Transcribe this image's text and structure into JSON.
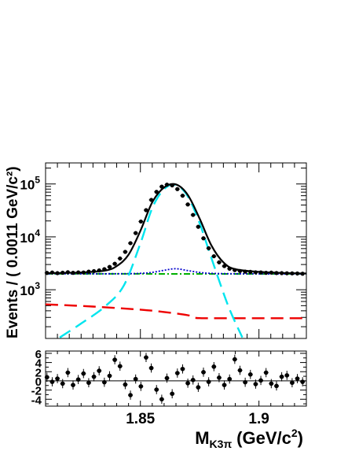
{
  "chart_data": [
    {
      "type": "line",
      "panel": "main-fit",
      "ylabel": "Events / ( 0.0011 GeV/c²)",
      "yscale": "log",
      "xlim": [
        1.81,
        1.92
      ],
      "ylim": [
        120,
        250000
      ],
      "y_tick_labels": [
        {
          "base": "10",
          "exp": "3",
          "value": 1000
        },
        {
          "base": "10",
          "exp": "4",
          "value": 10000
        },
        {
          "base": "10",
          "exp": "5",
          "value": 100000
        }
      ],
      "colors": {
        "data": "#000000",
        "total_fit": "#000000",
        "signal": "#00e5ee",
        "background_peaking": "#0000cc",
        "background_flat": "#00b000",
        "background_other": "#ee0000"
      },
      "series": [
        {
          "key": "data",
          "style": "points",
          "x": [
            1.8106,
            1.8128,
            1.815,
            1.8172,
            1.8194,
            1.8216,
            1.8238,
            1.826,
            1.8282,
            1.8304,
            1.8326,
            1.8348,
            1.837,
            1.8392,
            1.8414,
            1.8436,
            1.8458,
            1.848,
            1.8502,
            1.8524,
            1.8546,
            1.8568,
            1.859,
            1.8612,
            1.8634,
            1.8656,
            1.8678,
            1.87,
            1.8722,
            1.8744,
            1.8766,
            1.8788,
            1.881,
            1.8832,
            1.8854,
            1.8876,
            1.8898,
            1.892,
            1.8942,
            1.8964,
            1.8986,
            1.9008,
            1.903,
            1.9052,
            1.9074,
            1.9096,
            1.9118,
            1.914,
            1.9162,
            1.9184
          ],
          "y": [
            2080,
            2120,
            2060,
            2100,
            2150,
            2090,
            2130,
            2120,
            2200,
            2250,
            2320,
            2450,
            2700,
            3100,
            3900,
            5200,
            7600,
            11800,
            19500,
            32000,
            50000,
            71000,
            89000,
            97000,
            94000,
            80000,
            60000,
            41000,
            26000,
            15500,
            9400,
            6100,
            4300,
            3300,
            2800,
            2500,
            2350,
            2260,
            2200,
            2180,
            2140,
            2130,
            2090,
            2110,
            2070,
            2060,
            2050,
            2040,
            2030,
            2010
          ]
        },
        {
          "key": "total_fit",
          "style": "solid",
          "x": [
            1.81,
            1.825,
            1.835,
            1.84,
            1.845,
            1.85,
            1.855,
            1.86,
            1.865,
            1.87,
            1.875,
            1.88,
            1.885,
            1.89,
            1.9,
            1.91,
            1.92
          ],
          "y": [
            2060,
            2120,
            2300,
            2800,
            4600,
            13000,
            45000,
            86000,
            98000,
            62000,
            22000,
            6800,
            3300,
            2450,
            2180,
            2080,
            2030
          ]
        },
        {
          "key": "signal",
          "style": "dashed",
          "x": [
            1.816,
            1.825,
            1.835,
            1.843,
            1.85,
            1.855,
            1.86,
            1.865,
            1.87,
            1.875,
            1.88,
            1.887,
            1.893
          ],
          "y": [
            125,
            230,
            480,
            1200,
            7500,
            35000,
            80000,
            96000,
            58000,
            18000,
            3900,
            500,
            125
          ]
        },
        {
          "key": "background_peaking",
          "style": "dotted",
          "x": [
            1.81,
            1.84,
            1.85,
            1.855,
            1.86,
            1.865,
            1.87,
            1.875,
            1.88,
            1.89,
            1.92
          ],
          "y": [
            2000,
            2010,
            2040,
            2130,
            2330,
            2500,
            2300,
            2120,
            2040,
            2010,
            1990
          ]
        },
        {
          "key": "background_flat",
          "style": "dash-dot",
          "x": [
            1.81,
            1.92
          ],
          "y": [
            2000,
            1990
          ]
        },
        {
          "key": "background_other",
          "style": "dashed",
          "x": [
            1.81,
            1.83,
            1.85,
            1.86,
            1.87,
            1.873,
            1.88,
            1.9,
            1.92
          ],
          "y": [
            530,
            480,
            420,
            380,
            330,
            295,
            290,
            290,
            290
          ]
        }
      ]
    },
    {
      "type": "scatter",
      "panel": "pull",
      "xlabel": "M",
      "xlabel_sub": "K3π",
      "xlabel_unit_prefix": "(GeV/c",
      "xlabel_unit_exp": "2",
      "xlabel_unit_suffix": ")",
      "xlim": [
        1.81,
        1.92
      ],
      "ylim": [
        -5.5,
        6.5
      ],
      "x_tick_labels": [
        {
          "label": "1.85",
          "value": 1.85
        },
        {
          "label": "1.9",
          "value": 1.9
        }
      ],
      "y_tick_labels": [
        {
          "label": "6",
          "value": 6
        },
        {
          "label": "4",
          "value": 4
        },
        {
          "label": "2",
          "value": 2
        },
        {
          "label": "0",
          "value": 0
        },
        {
          "label": "-2",
          "value": -2
        },
        {
          "label": "-4",
          "value": -4
        }
      ],
      "error_bar": 1,
      "x": [
        1.8106,
        1.8128,
        1.815,
        1.8172,
        1.8194,
        1.8216,
        1.8238,
        1.826,
        1.8282,
        1.8304,
        1.8326,
        1.8348,
        1.837,
        1.8392,
        1.8414,
        1.8436,
        1.8458,
        1.848,
        1.8502,
        1.8524,
        1.8546,
        1.8568,
        1.859,
        1.8612,
        1.8634,
        1.8656,
        1.8678,
        1.87,
        1.8722,
        1.8744,
        1.8766,
        1.8788,
        1.881,
        1.8832,
        1.8854,
        1.8876,
        1.8898,
        1.892,
        1.8942,
        1.8964,
        1.8986,
        1.9008,
        1.903,
        1.9052,
        1.9074,
        1.9096,
        1.9118,
        1.914,
        1.9162,
        1.9184
      ],
      "y": [
        0.8,
        -0.2,
        0.5,
        -0.6,
        1.8,
        -0.9,
        0.3,
        1.6,
        -0.4,
        0.9,
        2.2,
        -0.3,
        1.1,
        4.6,
        3.2,
        -0.8,
        -3.1,
        0.4,
        -1.2,
        5.1,
        2.8,
        -1.9,
        -4.0,
        0.6,
        -2.8,
        1.7,
        2.6,
        -0.5,
        0.2,
        -1.4,
        1.9,
        -0.2,
        3.1,
        0.7,
        -0.9,
        0.4,
        4.7,
        2.3,
        -0.3,
        1.4,
        -0.7,
        0.1,
        1.8,
        -0.6,
        -1.1,
        0.9,
        1.2,
        -0.4,
        0.5,
        -0.2
      ]
    }
  ]
}
